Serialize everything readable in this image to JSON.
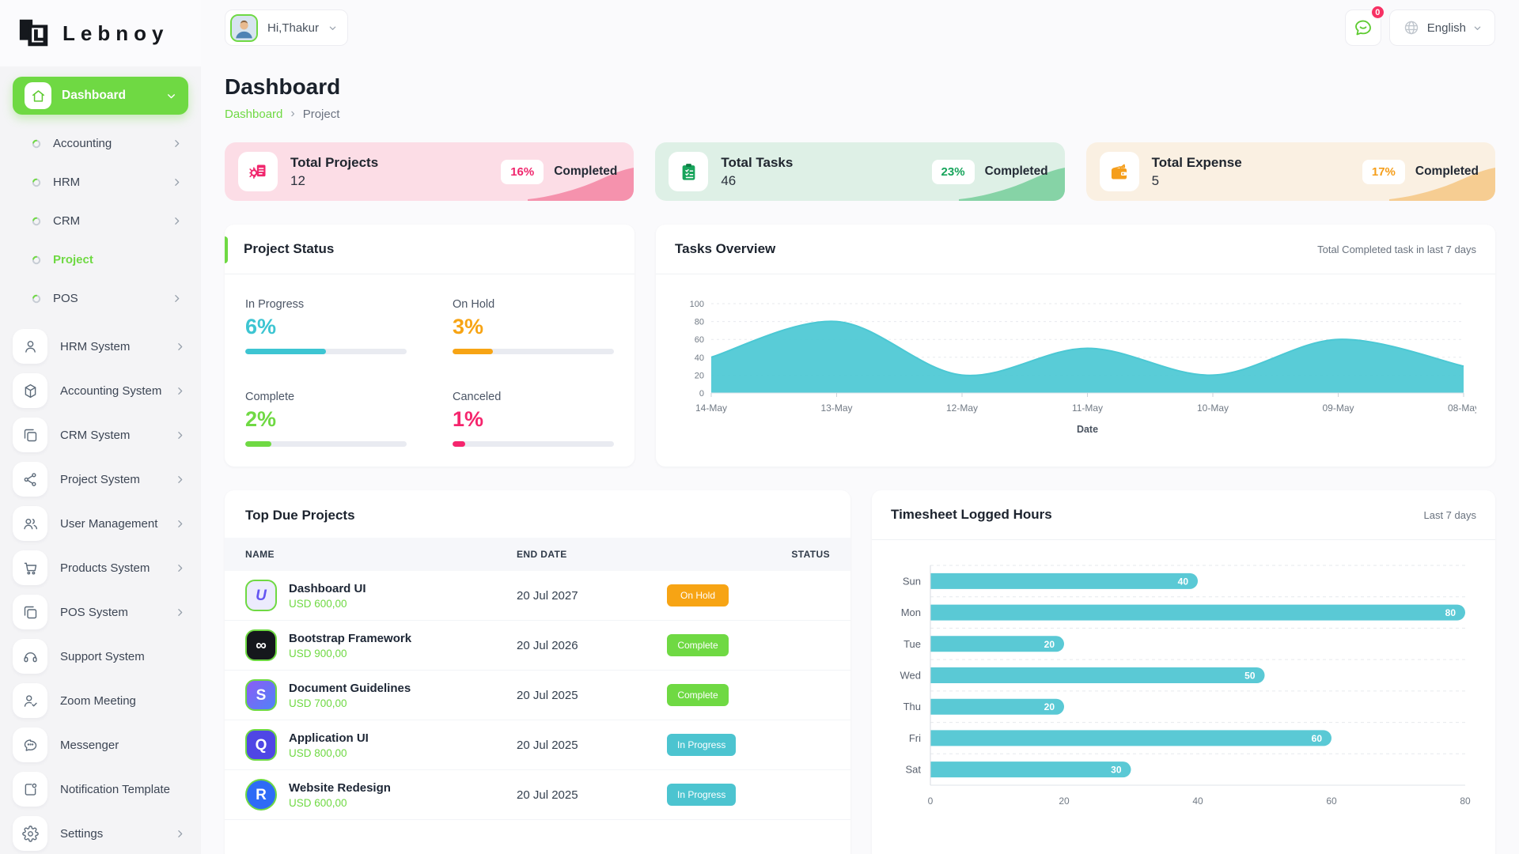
{
  "brand": {
    "name": "Lebnoy"
  },
  "topbar": {
    "greeting": "Hi,Thakur",
    "notification_badge": "0",
    "language": "English"
  },
  "sidebar": {
    "dashboard_label": "Dashboard",
    "submenu": [
      {
        "label": "Accounting",
        "active": false,
        "chevron": true
      },
      {
        "label": "HRM",
        "active": false,
        "chevron": true
      },
      {
        "label": "CRM",
        "active": false,
        "chevron": true
      },
      {
        "label": "Project",
        "active": true,
        "chevron": false
      },
      {
        "label": "POS",
        "active": false,
        "chevron": true
      }
    ],
    "items": [
      {
        "label": "HRM System",
        "icon": "person-icon",
        "chevron": true
      },
      {
        "label": "Accounting System",
        "icon": "cube-icon",
        "chevron": true
      },
      {
        "label": "CRM System",
        "icon": "cards-icon",
        "chevron": true
      },
      {
        "label": "Project System",
        "icon": "share-icon",
        "chevron": true
      },
      {
        "label": "User Management",
        "icon": "users-icon",
        "chevron": true
      },
      {
        "label": "Products System",
        "icon": "cart-icon",
        "chevron": true
      },
      {
        "label": "POS System",
        "icon": "cards-icon",
        "chevron": true
      },
      {
        "label": "Support System",
        "icon": "headset-icon",
        "chevron": false
      },
      {
        "label": "Zoom Meeting",
        "icon": "person-check-icon",
        "chevron": false
      },
      {
        "label": "Messenger",
        "icon": "chat-icon",
        "chevron": false
      },
      {
        "label": "Notification Template",
        "icon": "template-icon",
        "chevron": false
      },
      {
        "label": "Settings",
        "icon": "gear-icon",
        "chevron": true
      }
    ]
  },
  "page": {
    "title": "Dashboard",
    "breadcrumb_root": "Dashboard",
    "breadcrumb_current": "Project"
  },
  "stat_cards": [
    {
      "title": "Total Projects",
      "value": "12",
      "percent": "16%",
      "suffix": "Completed",
      "bg": "#fcdde6",
      "wave": "#f592ad",
      "accent": "#f0266d",
      "icon": "projects-icon"
    },
    {
      "title": "Total Tasks",
      "value": "46",
      "percent": "23%",
      "suffix": "Completed",
      "bg": "#def0e6",
      "wave": "#86d3a6",
      "accent": "#17a45b",
      "icon": "tasks-icon"
    },
    {
      "title": "Total Expense",
      "value": "5",
      "percent": "17%",
      "suffix": "Completed",
      "bg": "#faf0e2",
      "wave": "#f6cd92",
      "accent": "#f59e1b",
      "icon": "wallet-icon"
    }
  ],
  "project_status": {
    "title": "Project Status",
    "metrics": [
      {
        "label": "In Progress",
        "value": "6%",
        "color": "#3dc5d2",
        "bar_percent": 50
      },
      {
        "label": "On Hold",
        "value": "3%",
        "color": "#f7a414",
        "bar_percent": 25
      },
      {
        "label": "Complete",
        "value": "2%",
        "color": "#6fd943",
        "bar_percent": 16
      },
      {
        "label": "Canceled",
        "value": "1%",
        "color": "#f5256d",
        "bar_percent": 8
      }
    ]
  },
  "tasks_overview": {
    "title": "Tasks Overview",
    "subtitle": "Total Completed task in last 7 days"
  },
  "top_due_projects": {
    "title": "Top Due Projects",
    "columns": [
      "NAME",
      "END DATE",
      "STATUS"
    ],
    "rows": [
      {
        "name": "Dashboard UI",
        "amount": "USD 600,00",
        "end_date": "20 Jul 2027",
        "status": "On Hold",
        "status_color": "#f7a414",
        "avatar": {
          "glyph": "U",
          "bg": "#ecebfd",
          "bg2": "#ecebfd",
          "fg": "#6455f2",
          "shape": "square",
          "italic": true
        }
      },
      {
        "name": "Bootstrap Framework",
        "amount": "USD 900,00",
        "end_date": "20 Jul 2026",
        "status": "Complete",
        "status_color": "#6fd943",
        "avatar": {
          "glyph": "∞",
          "bg": "#15171c",
          "bg2": "#15171c",
          "fg": "#ffffff",
          "shape": "square",
          "italic": false
        }
      },
      {
        "name": "Document Guidelines",
        "amount": "USD 700,00",
        "end_date": "20 Jul 2025",
        "status": "Complete",
        "status_color": "#6fd943",
        "avatar": {
          "glyph": "S",
          "bg": "#8b5cf6",
          "bg2": "#4f83f7",
          "fg": "#ffffff",
          "shape": "square",
          "italic": false
        }
      },
      {
        "name": "Application UI",
        "amount": "USD 800,00",
        "end_date": "20 Jul 2025",
        "status": "In Progress",
        "status_color": "#4cc4d0",
        "avatar": {
          "glyph": "Q",
          "bg": "#4f46e5",
          "bg2": "#4f46e5",
          "fg": "#ffffff",
          "shape": "square",
          "italic": false
        }
      },
      {
        "name": "Website Redesign",
        "amount": "USD 600,00",
        "end_date": "20 Jul 2025",
        "status": "In Progress",
        "status_color": "#4cc4d0",
        "avatar": {
          "glyph": "R",
          "bg": "#2e6bf6",
          "bg2": "#2e6bf6",
          "fg": "#ffffff",
          "shape": "circle",
          "italic": false
        }
      }
    ]
  },
  "timesheet": {
    "title": "Timesheet Logged Hours",
    "subtitle": "Last 7 days"
  },
  "chart_data": [
    {
      "type": "area",
      "title": "Tasks Overview",
      "x": [
        "14-May",
        "13-May",
        "12-May",
        "11-May",
        "10-May",
        "09-May",
        "08-May"
      ],
      "values": [
        40,
        80,
        20,
        50,
        20,
        60,
        30
      ],
      "xlabel": "Date",
      "ylabel": "",
      "ylim": [
        0,
        100
      ],
      "yticks": [
        0,
        20,
        40,
        60,
        80,
        100
      ],
      "grid": true,
      "legend": "none",
      "color": "#4cc8d4"
    },
    {
      "type": "bar",
      "title": "Timesheet Logged Hours",
      "orientation": "horizontal",
      "categories": [
        "Sun",
        "Mon",
        "Tue",
        "Wed",
        "Thu",
        "Fri",
        "Sat"
      ],
      "values": [
        40,
        80,
        20,
        50,
        20,
        60,
        30
      ],
      "xlim": [
        0,
        80
      ],
      "xticks": [
        0,
        20,
        40,
        60,
        80
      ],
      "grid": true,
      "legend": "none",
      "color": "#5ac9d5"
    }
  ]
}
